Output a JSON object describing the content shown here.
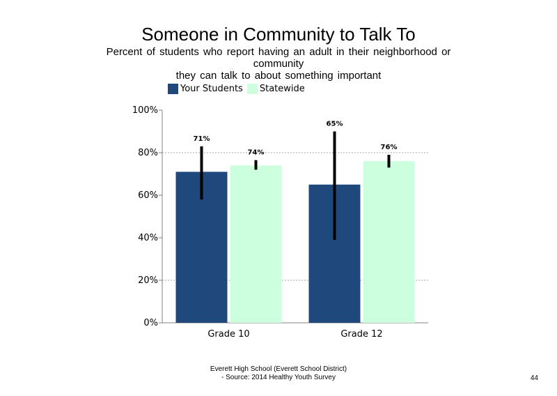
{
  "chart_data": {
    "type": "bar",
    "title": "Someone in Community to Talk To",
    "subtitle_lines": [
      "Percent of students who report having an adult in their neighborhood or",
      "community",
      "they can talk to about something important"
    ],
    "categories": [
      "Grade 10",
      "Grade 12"
    ],
    "series": [
      {
        "name": "Your Students",
        "color": "#1f497d",
        "values": [
          71,
          65
        ],
        "value_labels": [
          "71%",
          "65%"
        ],
        "error_low": [
          58,
          39
        ],
        "error_high": [
          83,
          90
        ]
      },
      {
        "name": "Statewide",
        "color": "#ccffdd",
        "values": [
          74,
          76
        ],
        "value_labels": [
          "74%",
          "76%"
        ],
        "error_low": [
          72,
          73
        ],
        "error_high": [
          76.5,
          79
        ]
      }
    ],
    "ylim": [
      0,
      100
    ],
    "yticks": [
      0,
      20,
      40,
      60,
      80,
      100
    ],
    "ytick_labels": [
      "0%",
      "20%",
      "40%",
      "60%",
      "80%",
      "100%"
    ],
    "gridlines": [
      20,
      80
    ],
    "legend_position": "top-left",
    "xlabel": "",
    "ylabel": ""
  },
  "footer": {
    "line1": "Everett High School (Everett School District)",
    "line2": "- Source: 2014 Healthy Youth Survey",
    "page_number": "44"
  }
}
